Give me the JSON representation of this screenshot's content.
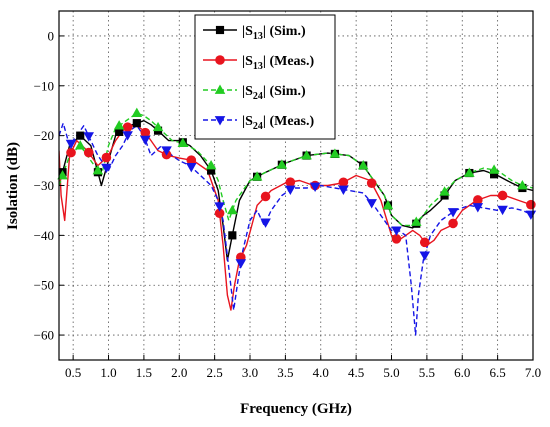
{
  "chart_data": {
    "type": "line",
    "xlabel": "Frequency (GHz)",
    "ylabel": "Isolation (dB)",
    "xlim": [
      0.3,
      7.0
    ],
    "ylim": [
      -65,
      5
    ],
    "xticks": [
      0.5,
      1.0,
      1.5,
      2.0,
      2.5,
      3.0,
      3.5,
      4.0,
      4.5,
      5.0,
      5.5,
      6.0,
      6.5,
      7.0
    ],
    "xtick_labels": [
      "0.5",
      "1.0",
      "1.5",
      "2.0",
      "2.5",
      "3.0",
      "3.5",
      "4.0",
      "4.5",
      "5.0",
      "5.5",
      "6.0",
      "6.5",
      "7.0"
    ],
    "yticks": [
      0,
      -10,
      -20,
      -30,
      -40,
      -50,
      -60
    ],
    "ytick_labels": [
      "0",
      "−10",
      "−20",
      "−30",
      "−40",
      "−50",
      "−60"
    ],
    "grid": true,
    "legend_position": "top-right",
    "series": [
      {
        "name": "|S13| (Sim.)",
        "label_main": "|S",
        "label_sub": "13",
        "label_rest": "| (Sim.)",
        "color": "#000000",
        "dash": "solid",
        "marker": "square",
        "x": [
          0.3,
          0.45,
          0.6,
          0.75,
          0.9,
          1.0,
          1.1,
          1.2,
          1.3,
          1.4,
          1.5,
          1.6,
          1.7,
          1.85,
          2.0,
          2.15,
          2.3,
          2.45,
          2.55,
          2.62,
          2.68,
          2.75,
          2.85,
          3.0,
          3.2,
          3.5,
          3.8,
          4.1,
          4.4,
          4.6,
          4.75,
          4.9,
          5.0,
          5.15,
          5.3,
          5.45,
          5.55,
          5.7,
          5.9,
          6.1,
          6.3,
          6.5,
          6.7,
          6.85,
          7.0
        ],
        "y": [
          -30,
          -22,
          -20,
          -22,
          -30,
          -25,
          -20,
          -18.5,
          -18,
          -17.5,
          -17,
          -17.8,
          -19,
          -21,
          -21,
          -22,
          -24,
          -27,
          -31,
          -38,
          -45,
          -40,
          -33,
          -29,
          -27.5,
          -25.5,
          -24,
          -23.5,
          -24,
          -26,
          -29,
          -32,
          -36,
          -38,
          -38.5,
          -36,
          -35,
          -33,
          -29,
          -27.5,
          -27,
          -28,
          -29.5,
          -30.5,
          -31
        ]
      },
      {
        "name": "|S13| (Meas.)",
        "label_main": "|S",
        "label_sub": "13",
        "label_rest": "| (Meas.)",
        "color": "#e8141e",
        "dash": "solid",
        "marker": "circle",
        "x": [
          0.3,
          0.33,
          0.38,
          0.45,
          0.55,
          0.7,
          0.85,
          1.0,
          1.1,
          1.2,
          1.3,
          1.4,
          1.5,
          1.6,
          1.7,
          1.85,
          2.0,
          2.2,
          2.4,
          2.55,
          2.62,
          2.68,
          2.73,
          2.78,
          2.85,
          2.95,
          3.1,
          3.3,
          3.5,
          3.7,
          3.9,
          4.1,
          4.3,
          4.5,
          4.7,
          4.85,
          5.0,
          5.1,
          5.2,
          5.3,
          5.4,
          5.5,
          5.6,
          5.7,
          5.85,
          6.0,
          6.2,
          6.4,
          6.6,
          6.8,
          7.0
        ],
        "y": [
          -23,
          -32,
          -37,
          -24,
          -21,
          -23,
          -26,
          -24,
          -21,
          -19,
          -18,
          -18,
          -19,
          -21,
          -23,
          -24,
          -24.5,
          -25,
          -27,
          -33,
          -42,
          -52,
          -55,
          -50,
          -45,
          -42,
          -34,
          -31,
          -29.5,
          -29,
          -30,
          -30,
          -29.5,
          -28,
          -29,
          -33,
          -40,
          -41,
          -40,
          -39,
          -40,
          -42,
          -41,
          -39,
          -38,
          -35,
          -33,
          -32,
          -32,
          -33,
          -34
        ]
      },
      {
        "name": "|S24| (Sim.)",
        "label_main": "|S",
        "label_sub": "24",
        "label_rest": "| (Sim.)",
        "color": "#22cc22",
        "dash": "dash",
        "marker": "triangle-up",
        "x": [
          0.3,
          0.45,
          0.6,
          0.75,
          0.9,
          1.0,
          1.1,
          1.2,
          1.3,
          1.4,
          1.5,
          1.6,
          1.75,
          1.9,
          2.05,
          2.25,
          2.45,
          2.55,
          2.62,
          2.7,
          2.8,
          3.0,
          3.2,
          3.5,
          3.8,
          4.1,
          4.4,
          4.6,
          4.75,
          4.9,
          5.0,
          5.15,
          5.3,
          5.45,
          5.55,
          5.7,
          5.9,
          6.1,
          6.3,
          6.5,
          6.7,
          6.85,
          7.0
        ],
        "y": [
          -30,
          -24,
          -22,
          -25,
          -28,
          -22,
          -18.5,
          -17.5,
          -16.5,
          -15.5,
          -16,
          -17,
          -19,
          -21,
          -21.5,
          -23,
          -26,
          -29,
          -33,
          -37,
          -33,
          -29,
          -27.5,
          -25.5,
          -24,
          -23.5,
          -24,
          -26,
          -29,
          -32,
          -36,
          -38,
          -38,
          -36,
          -34,
          -32,
          -29,
          -27.5,
          -26.5,
          -27,
          -29,
          -30,
          -30.5
        ]
      },
      {
        "name": "|S24| (Meas.)",
        "label_main": "|S",
        "label_sub": "24",
        "label_rest": "| (Meas.)",
        "color": "#1515e6",
        "dash": "dash",
        "marker": "triangle-down",
        "x": [
          0.3,
          0.36,
          0.45,
          0.55,
          0.65,
          0.75,
          0.85,
          1.0,
          1.1,
          1.2,
          1.3,
          1.4,
          1.5,
          1.6,
          1.75,
          1.9,
          2.0,
          2.15,
          2.3,
          2.45,
          2.55,
          2.62,
          2.67,
          2.72,
          2.77,
          2.83,
          2.9,
          3.0,
          3.1,
          3.2,
          3.3,
          3.45,
          3.6,
          3.8,
          4.0,
          4.2,
          4.4,
          4.6,
          4.75,
          4.9,
          5.0,
          5.1,
          5.2,
          5.28,
          5.34,
          5.38,
          5.45,
          5.55,
          5.7,
          5.9,
          6.1,
          6.3,
          6.5,
          6.7,
          6.85,
          7.0
        ],
        "y": [
          -20,
          -17.5,
          -22,
          -20,
          -18,
          -21,
          -24,
          -27,
          -24,
          -22,
          -19,
          -18,
          -20,
          -24,
          -22,
          -24,
          -25,
          -26,
          -28,
          -30,
          -33,
          -37,
          -43,
          -49,
          -55,
          -49,
          -43,
          -37,
          -35,
          -38,
          -35,
          -32,
          -30.5,
          -30.5,
          -30,
          -30.5,
          -31,
          -31.5,
          -34,
          -37,
          -39,
          -39,
          -40,
          -50,
          -60,
          -52,
          -45,
          -40,
          -37,
          -35,
          -34,
          -34.5,
          -35,
          -34.5,
          -35,
          -36
        ]
      }
    ]
  }
}
